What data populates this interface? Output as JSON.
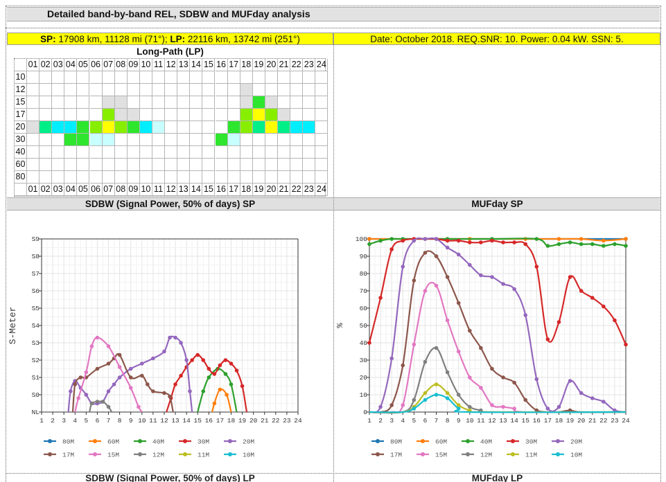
{
  "header": {
    "title": "Detailed band-by-band REL, SDBW and MUFday analysis",
    "sp_label": "SP:",
    "sp_value": " 17908 km, 11128 mi (71°); ",
    "lp_label": "LP:",
    "lp_value": " 22116 km, 13742 mi (251°)",
    "info": "Date: October 2018. REQ.SNR: 10. Power: 0.04 kW. SSN: 5."
  },
  "lp_grid": {
    "title": "Long-Path (LP)",
    "hours": [
      "01",
      "02",
      "03",
      "04",
      "05",
      "06",
      "07",
      "08",
      "09",
      "10",
      "11",
      "12",
      "13",
      "14",
      "15",
      "16",
      "17",
      "18",
      "19",
      "20",
      "21",
      "22",
      "23",
      "24"
    ],
    "bands": [
      "10",
      "12",
      "15",
      "17",
      "20",
      "30",
      "40",
      "60",
      "80"
    ],
    "colors": {
      "0": "#ffffff",
      "1": "#e0e0e0",
      "2": "#c8ffff",
      "3": "#00eeff",
      "4": "#00ee88",
      "5": "#2ee62e",
      "6": "#88ee00",
      "7": "#ffff00"
    },
    "cells": [
      "000000000000000000000000",
      "000000000000000001000000",
      "000000110000000001510000",
      "000000611000000006761000",
      "143356765320000056474330",
      "000552200000000520000000",
      "000000000000000000000000",
      "000000000000000000000000",
      "000000000000000000000000"
    ]
  },
  "sdbw_title": "SDBW (Signal Power, 50% of days) SP",
  "muf_title": "MUFday SP",
  "footer_left": "SDBW (Signal Power, 50% of days) LP",
  "footer_right": "MUFday LP",
  "chart_data": [
    {
      "type": "line",
      "title": "",
      "ylabel": "S-Meter",
      "x_ticks": [
        "1",
        "2",
        "3",
        "4",
        "5",
        "6",
        "7",
        "8",
        "9",
        "10",
        "11",
        "12",
        "13",
        "14",
        "15",
        "16",
        "17",
        "18",
        "19",
        "20",
        "21",
        "22",
        "23",
        "24"
      ],
      "y_ticks": [
        "NL",
        "S0",
        "S1",
        "S2",
        "S3",
        "S4",
        "S5",
        "S6",
        "S7",
        "S8",
        "S9"
      ],
      "xlim": [
        1,
        24
      ],
      "ylim": [
        0,
        10
      ],
      "grid": true,
      "legend_position": "bottom",
      "series": [
        {
          "name": "80M",
          "color": "#1f77b4",
          "points": []
        },
        {
          "name": "60M",
          "color": "#ff7f0e",
          "points": [
            [
              16.3,
              0
            ],
            [
              16.5,
              0.5
            ],
            [
              17,
              1.3
            ],
            [
              17.6,
              1
            ],
            [
              18,
              0
            ]
          ]
        },
        {
          "name": "40M",
          "color": "#2ca02c",
          "points": [
            [
              15,
              0
            ],
            [
              15.5,
              1.2
            ],
            [
              16,
              2
            ],
            [
              16.8,
              2.5
            ],
            [
              17.5,
              2.2
            ],
            [
              18,
              1.6
            ],
            [
              18.5,
              0
            ]
          ]
        },
        {
          "name": "30M",
          "color": "#d62728",
          "points": [
            [
              12.2,
              0
            ],
            [
              12.6,
              0.8
            ],
            [
              13,
              1.6
            ],
            [
              13.5,
              2.1
            ],
            [
              14,
              2.6
            ],
            [
              14.5,
              3.0
            ],
            [
              15,
              3.3
            ],
            [
              15.5,
              3.0
            ],
            [
              16,
              2.5
            ],
            [
              16.5,
              2.2
            ],
            [
              17,
              2.7
            ],
            [
              17.5,
              3.0
            ],
            [
              18,
              2.8
            ],
            [
              18.5,
              2.4
            ],
            [
              19,
              1.5
            ],
            [
              19.4,
              0
            ]
          ]
        },
        {
          "name": "20M",
          "color": "#9467bd",
          "points": [
            [
              3.4,
              0
            ],
            [
              3.6,
              1.2
            ],
            [
              4,
              1.8
            ],
            [
              4.5,
              1.4
            ],
            [
              5,
              1.0
            ],
            [
              5.5,
              0.5
            ],
            [
              6,
              0.5
            ],
            [
              6.5,
              0.6
            ],
            [
              7,
              1.2
            ],
            [
              7.5,
              1.6
            ],
            [
              8,
              2.0
            ],
            [
              9,
              2.5
            ],
            [
              10,
              2.8
            ],
            [
              11,
              3.1
            ],
            [
              12,
              3.5
            ],
            [
              12.5,
              4.3
            ],
            [
              13,
              4.3
            ],
            [
              13.5,
              4.0
            ],
            [
              14,
              3.0
            ],
            [
              14.3,
              1.2
            ],
            [
              14.5,
              0
            ]
          ]
        },
        {
          "name": "17M",
          "color": "#8c564b",
          "points": [
            [
              3.8,
              0
            ],
            [
              4,
              1.6
            ],
            [
              4.5,
              2.0
            ],
            [
              5,
              2.0
            ],
            [
              6,
              2.5
            ],
            [
              7,
              2.8
            ],
            [
              7.5,
              3.1
            ],
            [
              8,
              3.3
            ],
            [
              9,
              2.0
            ],
            [
              10,
              2.1
            ],
            [
              10.5,
              1.6
            ],
            [
              11,
              1.2
            ],
            [
              12,
              1.1
            ],
            [
              12.5,
              0.9
            ],
            [
              12.8,
              0
            ]
          ]
        },
        {
          "name": "15M",
          "color": "#e377c2",
          "points": [
            [
              4,
              0
            ],
            [
              4.3,
              0.8
            ],
            [
              5,
              2.3
            ],
            [
              5.5,
              3.8
            ],
            [
              6,
              4.3
            ],
            [
              7,
              3.8
            ],
            [
              8,
              2.6
            ],
            [
              9,
              1.4
            ],
            [
              9.7,
              0.3
            ],
            [
              10,
              0
            ]
          ]
        },
        {
          "name": "12M",
          "color": "#7f7f7f",
          "points": [
            [
              5.3,
              0
            ],
            [
              5.5,
              0.5
            ],
            [
              6,
              0.6
            ],
            [
              6.5,
              0.6
            ],
            [
              7,
              0.3
            ],
            [
              7.3,
              0
            ]
          ]
        },
        {
          "name": "11M",
          "color": "#bcbd22",
          "points": []
        },
        {
          "name": "10M",
          "color": "#17becf",
          "points": []
        }
      ]
    },
    {
      "type": "line",
      "title": "",
      "ylabel": "%",
      "x_ticks": [
        "1",
        "2",
        "3",
        "4",
        "5",
        "6",
        "7",
        "8",
        "9",
        "10",
        "11",
        "12",
        "13",
        "14",
        "15",
        "16",
        "17",
        "18",
        "19",
        "20",
        "21",
        "22",
        "23",
        "24"
      ],
      "y_ticks": [
        "0",
        "10",
        "20",
        "30",
        "40",
        "50",
        "60",
        "70",
        "80",
        "90",
        "100"
      ],
      "xlim": [
        1,
        24
      ],
      "ylim": [
        0,
        100
      ],
      "grid": true,
      "legend_position": "bottom",
      "series": [
        {
          "name": "80M",
          "color": "#1f77b4",
          "points": [
            [
              1,
              100
            ],
            [
              24,
              100
            ]
          ]
        },
        {
          "name": "60M",
          "color": "#ff7f0e",
          "points": [
            [
              1,
              100
            ],
            [
              5,
              100
            ],
            [
              10,
              100
            ],
            [
              15,
              100
            ],
            [
              18,
              100
            ],
            [
              20,
              100
            ],
            [
              22,
              99
            ],
            [
              24,
              100
            ]
          ]
        },
        {
          "name": "40M",
          "color": "#2ca02c",
          "points": [
            [
              1,
              97
            ],
            [
              2,
              99
            ],
            [
              3,
              100
            ],
            [
              4,
              100
            ],
            [
              8,
              100
            ],
            [
              12,
              100
            ],
            [
              16,
              100
            ],
            [
              17,
              96
            ],
            [
              18,
              97
            ],
            [
              19,
              98
            ],
            [
              20,
              97
            ],
            [
              21,
              97
            ],
            [
              22,
              96
            ],
            [
              23,
              97
            ],
            [
              24,
              96
            ]
          ]
        },
        {
          "name": "30M",
          "color": "#d62728",
          "points": [
            [
              1,
              40
            ],
            [
              2,
              66
            ],
            [
              3,
              94
            ],
            [
              4,
              99
            ],
            [
              5,
              100
            ],
            [
              6,
              100
            ],
            [
              7,
              100
            ],
            [
              8,
              99
            ],
            [
              9,
              99
            ],
            [
              10,
              98
            ],
            [
              11,
              98
            ],
            [
              12,
              99
            ],
            [
              13,
              98
            ],
            [
              14,
              98
            ],
            [
              15,
              97
            ],
            [
              16,
              84
            ],
            [
              17,
              42
            ],
            [
              18,
              52
            ],
            [
              19,
              78
            ],
            [
              20,
              70
            ],
            [
              21,
              66
            ],
            [
              22,
              61
            ],
            [
              23,
              53
            ],
            [
              24,
              39
            ]
          ]
        },
        {
          "name": "20M",
          "color": "#9467bd",
          "points": [
            [
              1,
              0
            ],
            [
              2,
              3
            ],
            [
              3,
              31
            ],
            [
              4,
              84
            ],
            [
              5,
              99
            ],
            [
              6,
              100
            ],
            [
              7,
              100
            ],
            [
              8,
              95
            ],
            [
              9,
              91
            ],
            [
              10,
              85
            ],
            [
              11,
              79
            ],
            [
              12,
              78
            ],
            [
              13,
              74
            ],
            [
              14,
              71
            ],
            [
              15,
              56
            ],
            [
              16,
              19
            ],
            [
              17,
              2
            ],
            [
              18,
              3
            ],
            [
              19,
              18
            ],
            [
              20,
              11
            ],
            [
              21,
              8
            ],
            [
              22,
              6
            ],
            [
              23,
              1
            ],
            [
              24,
              0
            ]
          ]
        },
        {
          "name": "17M",
          "color": "#8c564b",
          "points": [
            [
              1,
              0
            ],
            [
              2,
              0
            ],
            [
              3,
              4
            ],
            [
              4,
              27
            ],
            [
              5,
              76
            ],
            [
              6,
              92
            ],
            [
              7,
              90
            ],
            [
              8,
              78
            ],
            [
              9,
              63
            ],
            [
              10,
              47
            ],
            [
              11,
              37
            ],
            [
              12,
              25
            ],
            [
              13,
              20
            ],
            [
              14,
              17
            ],
            [
              15,
              7
            ],
            [
              16,
              1
            ],
            [
              17,
              0
            ],
            [
              18,
              0
            ],
            [
              19,
              1
            ],
            [
              20,
              0
            ],
            [
              24,
              0
            ]
          ]
        },
        {
          "name": "15M",
          "color": "#e377c2",
          "points": [
            [
              1,
              0
            ],
            [
              3,
              0
            ],
            [
              4,
              4
            ],
            [
              5,
              39
            ],
            [
              6,
              70
            ],
            [
              7,
              73
            ],
            [
              8,
              53
            ],
            [
              9,
              35
            ],
            [
              10,
              20
            ],
            [
              11,
              14
            ],
            [
              12,
              4
            ],
            [
              13,
              3
            ],
            [
              14,
              2
            ],
            [
              15,
              0
            ],
            [
              24,
              0
            ]
          ]
        },
        {
          "name": "12M",
          "color": "#7f7f7f",
          "points": [
            [
              1,
              0
            ],
            [
              4,
              0
            ],
            [
              5,
              7
            ],
            [
              6,
              29
            ],
            [
              7,
              37
            ],
            [
              8,
              23
            ],
            [
              9,
              10
            ],
            [
              10,
              3
            ],
            [
              11,
              1
            ],
            [
              12,
              0
            ],
            [
              24,
              0
            ]
          ]
        },
        {
          "name": "11M",
          "color": "#bcbd22",
          "points": [
            [
              1,
              0
            ],
            [
              4,
              0
            ],
            [
              5,
              3
            ],
            [
              6,
              11
            ],
            [
              7,
              16
            ],
            [
              8,
              11
            ],
            [
              9,
              4
            ],
            [
              10,
              1
            ],
            [
              11,
              0
            ],
            [
              24,
              0
            ]
          ]
        },
        {
          "name": "10M",
          "color": "#17becf",
          "points": [
            [
              1,
              0
            ],
            [
              4,
              0
            ],
            [
              5,
              2
            ],
            [
              6,
              7
            ],
            [
              7,
              10
            ],
            [
              8,
              8
            ],
            [
              9,
              2
            ],
            [
              10,
              0
            ],
            [
              24,
              0
            ]
          ]
        }
      ]
    }
  ]
}
